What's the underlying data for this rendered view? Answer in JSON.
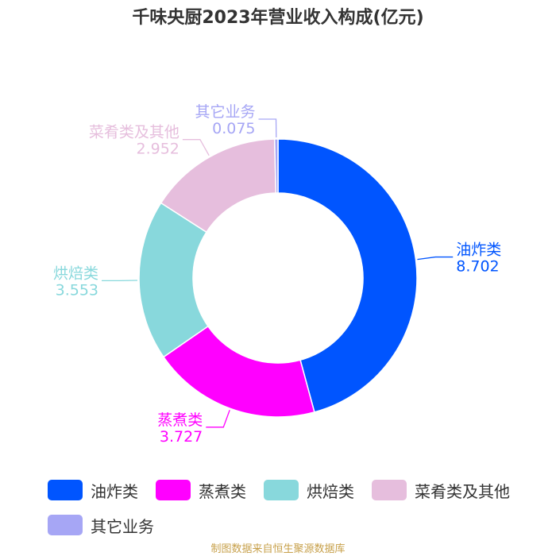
{
  "chart_data": {
    "type": "pie",
    "title": "千味央厨2023年营业收入构成(亿元)",
    "categories": [
      "油炸类",
      "蒸煮类",
      "烘焙类",
      "菜肴类及其他",
      "其它业务"
    ],
    "values": [
      8.702,
      3.727,
      3.553,
      2.952,
      0.075
    ],
    "value_labels": [
      "8.702",
      "3.727",
      "3.553",
      "2.952",
      "0.075"
    ],
    "colors": [
      "#0055ff",
      "#ff00ff",
      "#88d8dc",
      "#e6bedd",
      "#a6a6f5"
    ],
    "donut": true,
    "legend_position": "bottom"
  },
  "source": "制图数据来自恒生聚源数据库"
}
